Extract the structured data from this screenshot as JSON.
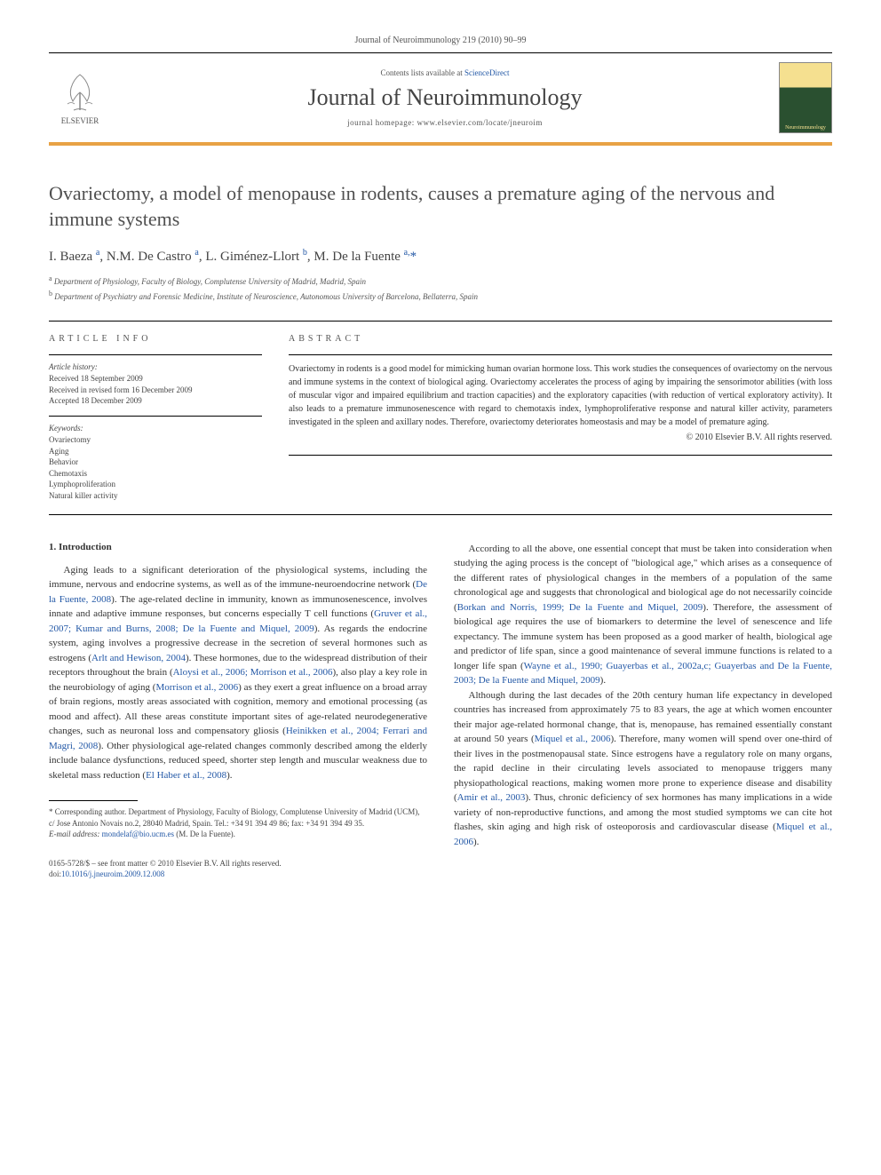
{
  "header": {
    "citation": "Journal of Neuroimmunology 219 (2010) 90–99",
    "contents_prefix": "Contents lists available at ",
    "contents_link": "ScienceDirect",
    "journal_name": "Journal of Neuroimmunology",
    "homepage_prefix": "journal homepage: ",
    "homepage_url": "www.elsevier.com/locate/jneuroim",
    "elsevier_label": "ELSEVIER",
    "cover_label": "Neuroimmunology"
  },
  "article": {
    "title": "Ovariectomy, a model of menopause in rodents, causes a premature aging of the nervous and immune systems",
    "authors_html": "I. Baeza <sup>a</sup>, N.M. De Castro <sup>a</sup>, L. Giménez-Llort <sup>b</sup>, M. De la Fuente <sup>a,</sup><span class='star'>*</span>",
    "affiliations": [
      {
        "sup": "a",
        "text": "Department of Physiology, Faculty of Biology, Complutense University of Madrid, Madrid, Spain"
      },
      {
        "sup": "b",
        "text": "Department of Psychiatry and Forensic Medicine, Institute of Neuroscience, Autonomous University of Barcelona, Bellaterra, Spain"
      }
    ]
  },
  "info": {
    "heading": "ARTICLE INFO",
    "history_label": "Article history:",
    "history": [
      "Received 18 September 2009",
      "Received in revised form 16 December 2009",
      "Accepted 18 December 2009"
    ],
    "keywords_label": "Keywords:",
    "keywords": [
      "Ovariectomy",
      "Aging",
      "Behavior",
      "Chemotaxis",
      "Lymphoproliferation",
      "Natural killer activity"
    ]
  },
  "abstract": {
    "heading": "ABSTRACT",
    "text": "Ovariectomy in rodents is a good model for mimicking human ovarian hormone loss. This work studies the consequences of ovariectomy on the nervous and immune systems in the context of biological aging. Ovariectomy accelerates the process of aging by impairing the sensorimotor abilities (with loss of muscular vigor and impaired equilibrium and traction capacities) and the exploratory capacities (with reduction of vertical exploratory activity). It also leads to a premature immunosenescence with regard to chemotaxis index, lymphoproliferative response and natural killer activity, parameters investigated in the spleen and axillary nodes. Therefore, ovariectomy deteriorates homeostasis and may be a model of premature aging.",
    "copyright": "© 2010 Elsevier B.V. All rights reserved."
  },
  "body": {
    "section_heading": "1. Introduction",
    "col1_paras": [
      "Aging leads to a significant deterioration of the physiological systems, including the immune, nervous and endocrine systems, as well as of the immune-neuroendocrine network (<span class='cite'>De la Fuente, 2008</span>). The age-related decline in immunity, known as immunosenescence, involves innate and adaptive immune responses, but concerns especially T cell functions (<span class='cite'>Gruver et al., 2007; Kumar and Burns, 2008; De la Fuente and Miquel, 2009</span>). As regards the endocrine system, aging involves a progressive decrease in the secretion of several hormones such as estrogens (<span class='cite'>Arlt and Hewison, 2004</span>). These hormones, due to the widespread distribution of their receptors throughout the brain (<span class='cite'>Aloysi et al., 2006; Morrison et al., 2006</span>), also play a key role in the neurobiology of aging (<span class='cite'>Morrison et al., 2006</span>) as they exert a great influence on a broad array of brain regions, mostly areas associated with cognition, memory and emotional processing (as mood and affect). All these areas constitute important sites of age-related neurodegenerative changes, such as neuronal loss and compensatory gliosis (<span class='cite'>Heinikken et al., 2004; Ferrari and Magri, 2008</span>). Other physiological age-related changes commonly described among the elderly include balance dysfunctions, reduced speed, shorter step length and muscular weakness due to skeletal mass reduction (<span class='cite'>El Haber et al., 2008</span>)."
    ],
    "col2_paras": [
      "According to all the above, one essential concept that must be taken into consideration when studying the aging process is the concept of \"biological age,\" which arises as a consequence of the different rates of physiological changes in the members of a population of the same chronological age and suggests that chronological and biological age do not necessarily coincide (<span class='cite'>Borkan and Norris, 1999; De la Fuente and Miquel, 2009</span>). Therefore, the assessment of biological age requires the use of biomarkers to determine the level of senescence and life expectancy. The immune system has been proposed as a good marker of health, biological age and predictor of life span, since a good maintenance of several immune functions is related to a longer life span (<span class='cite'>Wayne et al., 1990; Guayerbas et al., 2002a,c; Guayerbas and De la Fuente, 2003; De la Fuente and Miquel, 2009</span>).",
      "Although during the last decades of the 20th century human life expectancy in developed countries has increased from approximately 75 to 83 years, the age at which women encounter their major age-related hormonal change, that is, menopause, has remained essentially constant at around 50 years (<span class='cite'>Miquel et al., 2006</span>). Therefore, many women will spend over one-third of their lives in the postmenopausal state. Since estrogens have a regulatory role on many organs, the rapid decline in their circulating levels associated to menopause triggers many physiopathological reactions, making women more prone to experience disease and disability (<span class='cite'>Amir et al., 2003</span>). Thus, chronic deficiency of sex hormones has many implications in a wide variety of non-reproductive functions, and among the most studied symptoms we can cite hot flashes, skin aging and high risk of osteoporosis and cardiovascular disease (<span class='cite'>Miquel et al., 2006</span>)."
    ]
  },
  "footnote": {
    "corresponding": "* Corresponding author. Department of Physiology, Faculty of Biology, Complutense University of Madrid (UCM), c/ Jose Antonio Novais no.2, 28040 Madrid, Spain. Tel.: +34 91 394 49 86; fax: +34 91 394 49 35.",
    "email_label": "E-mail address: ",
    "email": "mondelaf@bio.ucm.es",
    "email_suffix": " (M. De la Fuente)."
  },
  "bottom": {
    "issn": "0165-5728/$ – see front matter © 2010 Elsevier B.V. All rights reserved.",
    "doi_prefix": "doi:",
    "doi": "10.1016/j.jneuroim.2009.12.008"
  },
  "colors": {
    "accent_orange": "#e8a245",
    "link_blue": "#2358a6",
    "text_gray": "#555555",
    "body_text": "#333333"
  }
}
